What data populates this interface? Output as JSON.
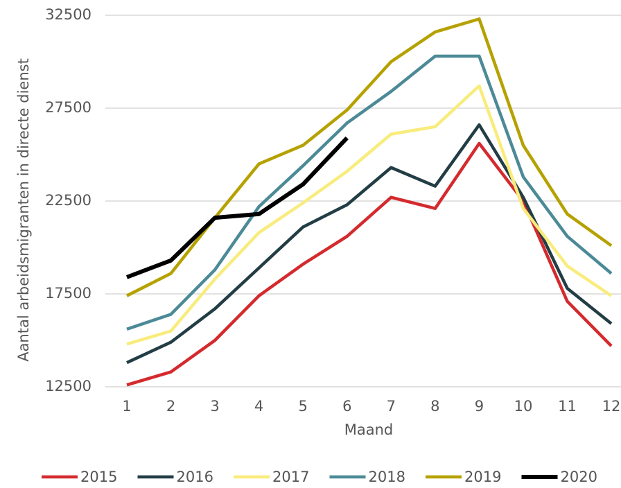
{
  "chart_data": {
    "type": "line",
    "x_label": "Maand",
    "y_label": "Aantal arbeidsmigranten in directe dienst",
    "categories": [
      "1",
      "2",
      "3",
      "4",
      "5",
      "6",
      "7",
      "8",
      "9",
      "10",
      "11",
      "12"
    ],
    "ylim": [
      12500,
      32500
    ],
    "yticks": [
      12500,
      17500,
      22500,
      27500,
      32500
    ],
    "grid": true,
    "legend": "bottom",
    "series": [
      {
        "name": "2015",
        "color": "#d42a2e",
        "values": [
          12600,
          13300,
          15000,
          17400,
          19100,
          20600,
          22700,
          22100,
          25600,
          22500,
          17100,
          14700
        ]
      },
      {
        "name": "2016",
        "color": "#233d45",
        "values": [
          13800,
          14900,
          16700,
          18900,
          21100,
          22300,
          24300,
          23300,
          26600,
          22700,
          17800,
          15900
        ]
      },
      {
        "name": "2017",
        "color": "#f8ec7c",
        "values": [
          14800,
          15500,
          18300,
          20800,
          22400,
          24100,
          26100,
          26500,
          28700,
          22100,
          19000,
          17400
        ]
      },
      {
        "name": "2018",
        "color": "#4b8a96",
        "values": [
          15600,
          16400,
          18800,
          22200,
          24400,
          26700,
          28400,
          30300,
          30300,
          23800,
          20600,
          18600
        ]
      },
      {
        "name": "2019",
        "color": "#b5a100",
        "values": [
          17400,
          18600,
          21600,
          24500,
          25500,
          27400,
          30000,
          31600,
          32300,
          25500,
          21800,
          20100
        ]
      },
      {
        "name": "2020",
        "color": "#000000",
        "values": [
          18400,
          19300,
          21600,
          21800,
          23400,
          25900,
          null,
          null,
          null,
          null,
          null,
          null
        ]
      }
    ]
  }
}
